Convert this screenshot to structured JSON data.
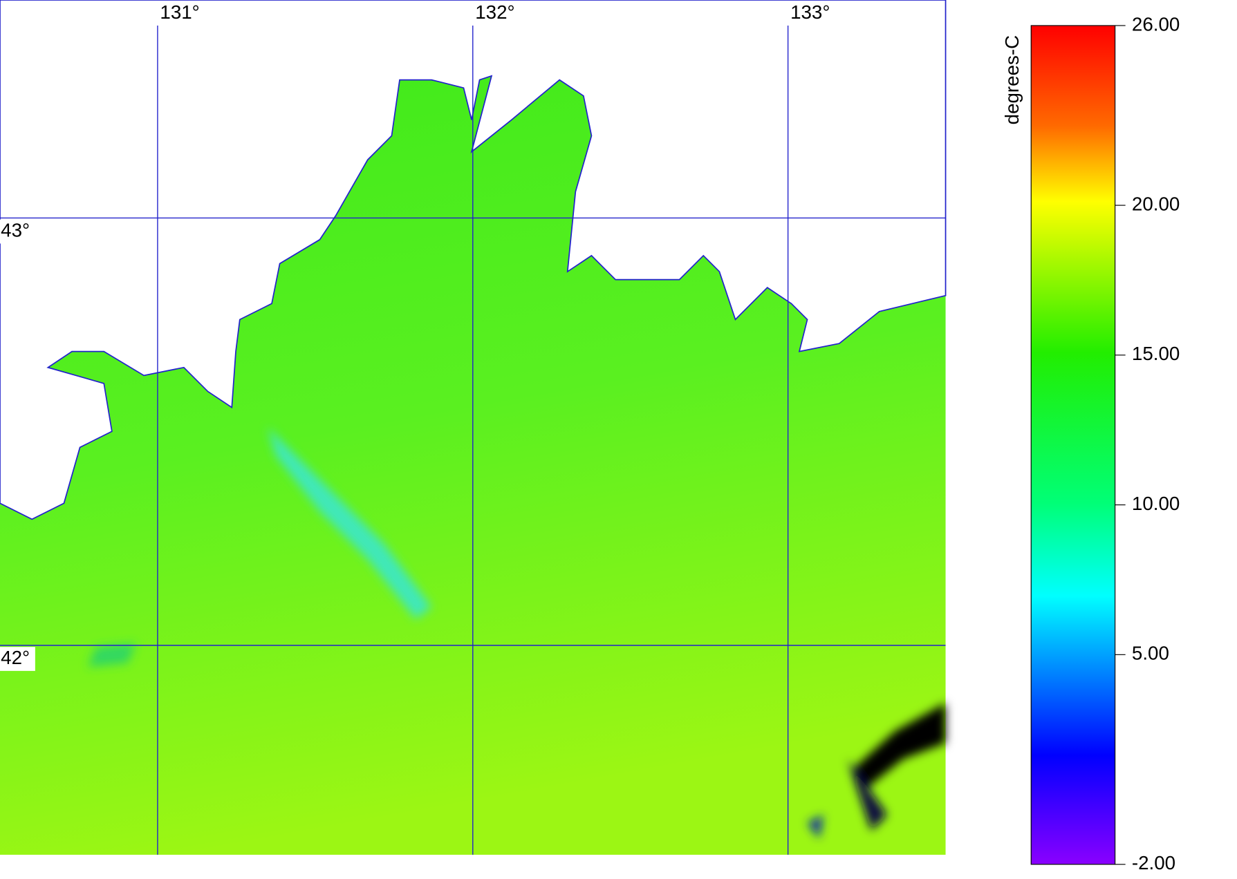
{
  "map": {
    "xlim": [
      130.5,
      133.5
    ],
    "ylim": [
      41.51,
      43.51
    ],
    "xticks": [
      {
        "value": 131,
        "label": "131°"
      },
      {
        "value": 132,
        "label": "132°"
      },
      {
        "value": 133,
        "label": "133°"
      }
    ],
    "yticks": [
      {
        "value": 43,
        "label": "43°"
      },
      {
        "value": 42,
        "label": "42°"
      }
    ]
  },
  "colorbar": {
    "label": "degrees-C",
    "lim": [
      -2,
      26
    ],
    "ticks": [
      {
        "value": 26,
        "label": "26.00"
      },
      {
        "value": 20,
        "label": "20.00"
      },
      {
        "value": 15,
        "label": "15.00"
      },
      {
        "value": 10,
        "label": "10.00"
      },
      {
        "value": 5,
        "label": "5.00"
      },
      {
        "value": -2,
        "label": "-2.00"
      }
    ]
  }
}
